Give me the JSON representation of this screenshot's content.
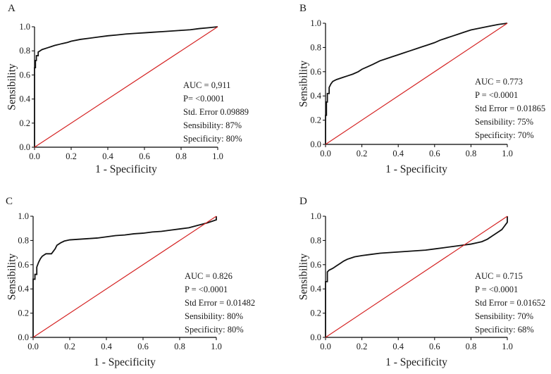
{
  "figure": {
    "x_axis_title": "1 - Specificity",
    "y_axis_title": "Sensibility",
    "reference_line_color": "#d42020",
    "curve_color": "#111111"
  },
  "chart_data": [
    {
      "type": "line",
      "panel": "A",
      "xlabel": "1 - Specificity",
      "ylabel": "Sensibility",
      "xlim": [
        0,
        1
      ],
      "ylim": [
        0,
        1
      ],
      "x_ticks": [
        "0.0",
        "0.2",
        "0.4",
        "0.6",
        "0.8",
        "1.0"
      ],
      "y_ticks": [
        "0.0",
        "0.2",
        "0.4",
        "0.6",
        "0.8",
        "1.0"
      ],
      "annotations": [
        "AUC = 0,911",
        "P= <0.0001",
        "Std. Error 0.09889",
        "Sensibility: 87%",
        "Specificity: 80%"
      ],
      "series": [
        {
          "name": "ROC",
          "x": [
            0,
            0,
            0.005,
            0.005,
            0.01,
            0.01,
            0.02,
            0.02,
            0.03,
            0.04,
            0.05,
            0.07,
            0.09,
            0.11,
            0.13,
            0.15,
            0.18,
            0.2,
            0.25,
            0.3,
            0.35,
            0.4,
            0.45,
            0.5,
            0.55,
            0.6,
            0.65,
            0.7,
            0.75,
            0.8,
            0.85,
            0.9,
            0.95,
            1.0
          ],
          "y": [
            0,
            0.66,
            0.66,
            0.72,
            0.72,
            0.76,
            0.76,
            0.79,
            0.8,
            0.81,
            0.815,
            0.825,
            0.835,
            0.845,
            0.852,
            0.86,
            0.87,
            0.88,
            0.895,
            0.905,
            0.915,
            0.925,
            0.932,
            0.94,
            0.945,
            0.95,
            0.955,
            0.96,
            0.965,
            0.97,
            0.975,
            0.985,
            0.992,
            1.0
          ]
        },
        {
          "name": "Reference",
          "x": [
            0,
            1
          ],
          "y": [
            0,
            1
          ]
        }
      ]
    },
    {
      "type": "line",
      "panel": "B",
      "xlabel": "1 - Specificity",
      "ylabel": "Sensibility",
      "xlim": [
        0,
        1
      ],
      "ylim": [
        0,
        1
      ],
      "x_ticks": [
        "0.0",
        "0.2",
        "0.4",
        "0.6",
        "0.8",
        "1.0"
      ],
      "y_ticks": [
        "0.0",
        "0.2",
        "0.4",
        "0.6",
        "0.8",
        "1.0"
      ],
      "annotations": [
        "AUC = 0.773",
        "P = <0.0001",
        "Std Error = 0.01865",
        "Sensibility: 75%",
        "Specificity: 70%"
      ],
      "series": [
        {
          "name": "ROC",
          "x": [
            0,
            0,
            0.005,
            0.005,
            0.01,
            0.01,
            0.02,
            0.02,
            0.03,
            0.04,
            0.06,
            0.08,
            0.1,
            0.12,
            0.15,
            0.18,
            0.2,
            0.23,
            0.26,
            0.3,
            0.33,
            0.36,
            0.4,
            0.43,
            0.46,
            0.5,
            0.53,
            0.56,
            0.6,
            0.63,
            0.66,
            0.7,
            0.73,
            0.76,
            0.8,
            0.85,
            0.9,
            0.95,
            1.0
          ],
          "y": [
            0,
            0.24,
            0.24,
            0.35,
            0.35,
            0.42,
            0.42,
            0.47,
            0.5,
            0.52,
            0.535,
            0.545,
            0.555,
            0.565,
            0.58,
            0.6,
            0.62,
            0.64,
            0.66,
            0.69,
            0.705,
            0.72,
            0.74,
            0.755,
            0.77,
            0.79,
            0.805,
            0.82,
            0.84,
            0.86,
            0.875,
            0.895,
            0.91,
            0.925,
            0.945,
            0.96,
            0.975,
            0.99,
            1.0
          ]
        },
        {
          "name": "Reference",
          "x": [
            0,
            1
          ],
          "y": [
            0,
            1
          ]
        }
      ]
    },
    {
      "type": "line",
      "panel": "C",
      "xlabel": "1 - Specificity",
      "ylabel": "Sensibility",
      "xlim": [
        0,
        1
      ],
      "ylim": [
        0,
        1
      ],
      "x_ticks": [
        "0.0",
        "0.2",
        "0.4",
        "0.6",
        "0.8",
        "1.0"
      ],
      "y_ticks": [
        "0.0",
        "0.2",
        "0.4",
        "0.6",
        "0.8",
        "1.0"
      ],
      "annotations": [
        "AUC = 0.826",
        "P = <0.0001",
        "Std Error = 0.01482",
        "Sensibility: 80%",
        "Specificity: 80%"
      ],
      "series": [
        {
          "name": "ROC",
          "x": [
            0,
            0,
            0.01,
            0.01,
            0.02,
            0.02,
            0.03,
            0.04,
            0.05,
            0.06,
            0.07,
            0.1,
            0.12,
            0.13,
            0.15,
            0.17,
            0.2,
            0.25,
            0.3,
            0.35,
            0.4,
            0.45,
            0.5,
            0.55,
            0.6,
            0.65,
            0.7,
            0.75,
            0.8,
            0.85,
            0.9,
            0.95,
            0.98,
            1.0,
            1.0
          ],
          "y": [
            0,
            0.48,
            0.48,
            0.52,
            0.52,
            0.58,
            0.62,
            0.65,
            0.67,
            0.68,
            0.69,
            0.69,
            0.73,
            0.76,
            0.78,
            0.795,
            0.805,
            0.81,
            0.815,
            0.82,
            0.83,
            0.84,
            0.845,
            0.855,
            0.86,
            0.87,
            0.875,
            0.885,
            0.895,
            0.905,
            0.925,
            0.945,
            0.96,
            0.97,
            1.0
          ]
        },
        {
          "name": "Reference",
          "x": [
            0,
            1
          ],
          "y": [
            0,
            1
          ]
        }
      ]
    },
    {
      "type": "line",
      "panel": "D",
      "xlabel": "1 - Specificity",
      "ylabel": "Sensibility",
      "xlim": [
        0,
        1
      ],
      "ylim": [
        0,
        1
      ],
      "x_ticks": [
        "0.0",
        "0.2",
        "0.4",
        "0.6",
        "0.8",
        "1.0"
      ],
      "y_ticks": [
        "0.0",
        "0.2",
        "0.4",
        "0.6",
        "0.8",
        "1.0"
      ],
      "annotations": [
        "AUC = 0.715",
        "P = <0.0001",
        "Std Error = 0.01652",
        "Sensibility: 70%",
        "Specificity: 68%"
      ],
      "series": [
        {
          "name": "ROC",
          "x": [
            0,
            0,
            0.01,
            0.01,
            0.02,
            0.04,
            0.06,
            0.08,
            0.1,
            0.12,
            0.14,
            0.16,
            0.18,
            0.2,
            0.25,
            0.3,
            0.35,
            0.4,
            0.45,
            0.5,
            0.55,
            0.6,
            0.65,
            0.7,
            0.75,
            0.8,
            0.83,
            0.86,
            0.89,
            0.92,
            0.95,
            0.97,
            0.98,
            0.99,
            1.0,
            1.0
          ],
          "y": [
            0,
            0.46,
            0.46,
            0.54,
            0.555,
            0.57,
            0.59,
            0.61,
            0.63,
            0.645,
            0.655,
            0.665,
            0.67,
            0.675,
            0.685,
            0.695,
            0.7,
            0.705,
            0.71,
            0.715,
            0.72,
            0.73,
            0.74,
            0.75,
            0.76,
            0.77,
            0.78,
            0.79,
            0.81,
            0.84,
            0.87,
            0.89,
            0.91,
            0.93,
            0.95,
            1.0
          ]
        },
        {
          "name": "Reference",
          "x": [
            0,
            1
          ],
          "y": [
            0,
            1
          ]
        }
      ]
    }
  ]
}
